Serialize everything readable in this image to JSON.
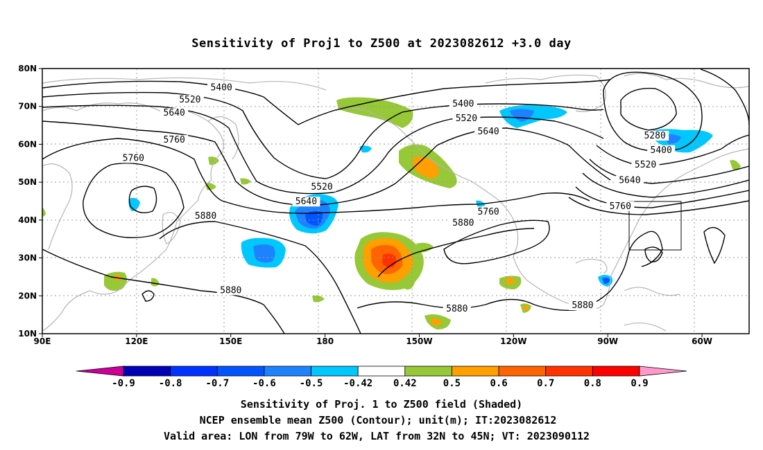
{
  "title": "Sensitivity of Proj1 to Z500 at 2023082612 +3.0 day",
  "map": {
    "lon_range": [
      90,
      315
    ],
    "lat_range": [
      10,
      80
    ],
    "lat_ticks": [
      {
        "value": 80,
        "label": "80N"
      },
      {
        "value": 70,
        "label": "70N"
      },
      {
        "value": 60,
        "label": "60N"
      },
      {
        "value": 50,
        "label": "50N"
      },
      {
        "value": 40,
        "label": "40N"
      },
      {
        "value": 30,
        "label": "30N"
      },
      {
        "value": 20,
        "label": "20N"
      },
      {
        "value": 10,
        "label": "10N"
      }
    ],
    "lon_ticks": [
      {
        "value": 90,
        "label": "90E"
      },
      {
        "value": 120,
        "label": "120E"
      },
      {
        "value": 150,
        "label": "150E"
      },
      {
        "value": 180,
        "label": "180"
      },
      {
        "value": 210,
        "label": "150W"
      },
      {
        "value": 240,
        "label": "120W"
      },
      {
        "value": 270,
        "label": "90W"
      },
      {
        "value": 300,
        "label": "60W"
      }
    ],
    "grid": "dotted",
    "valid_area_box": {
      "lon": [
        281,
        298
      ],
      "lat": [
        32,
        45
      ]
    },
    "contour_labels": [
      {
        "text": "5400",
        "lon": 147,
        "lat": 74.6
      },
      {
        "text": "5520",
        "lon": 137,
        "lat": 71.4
      },
      {
        "text": "5640",
        "lon": 132,
        "lat": 67.9
      },
      {
        "text": "5760",
        "lon": 132,
        "lat": 60.8
      },
      {
        "text": "5760",
        "lon": 119,
        "lat": 56
      },
      {
        "text": "5880",
        "lon": 142,
        "lat": 40.7
      },
      {
        "text": "5880",
        "lon": 150,
        "lat": 21.1
      },
      {
        "text": "5520",
        "lon": 179,
        "lat": 48.4
      },
      {
        "text": "5640",
        "lon": 174,
        "lat": 44.5
      },
      {
        "text": "5400",
        "lon": 224,
        "lat": 70.3
      },
      {
        "text": "5520",
        "lon": 225,
        "lat": 66.5
      },
      {
        "text": "5640",
        "lon": 232,
        "lat": 63
      },
      {
        "text": "5880",
        "lon": 224,
        "lat": 38.9
      },
      {
        "text": "5760",
        "lon": 232,
        "lat": 41.8
      },
      {
        "text": "5880",
        "lon": 222,
        "lat": 16.2
      },
      {
        "text": "5880",
        "lon": 262,
        "lat": 17.1
      },
      {
        "text": "5280",
        "lon": 285,
        "lat": 61.9
      },
      {
        "text": "5400",
        "lon": 287,
        "lat": 58.1
      },
      {
        "text": "5520",
        "lon": 282,
        "lat": 54.2
      },
      {
        "text": "5640",
        "lon": 277,
        "lat": 50.1
      },
      {
        "text": "5760",
        "lon": 274,
        "lat": 43.3
      }
    ]
  },
  "colorbar": {
    "levels": [
      "-0.9",
      "-0.8",
      "-0.7",
      "-0.6",
      "-0.5",
      "-0.42",
      "0.42",
      "0.5",
      "0.6",
      "0.7",
      "0.8",
      "0.9"
    ],
    "colors": [
      "#cc0099",
      "#0000b4",
      "#0033ff",
      "#0055ff",
      "#1e82ff",
      "#00c8ff",
      "#ffffff",
      "#96c837",
      "#ffa000",
      "#ff6400",
      "#ff3200",
      "#ff0000",
      "#ff99cc"
    ]
  },
  "caption": {
    "line1": "Sensitivity of Proj. 1 to Z500 field (Shaded)",
    "line2": "NCEP ensemble mean Z500 (Contour); unit(m); IT:2023082612",
    "line3": "Valid area: LON from 79W to 62W, LAT from 32N to 45N; VT: 2023090112"
  },
  "legend_colors": {
    "coast": "#b4b4b4",
    "contour": "#000000",
    "grid": "#999999"
  }
}
